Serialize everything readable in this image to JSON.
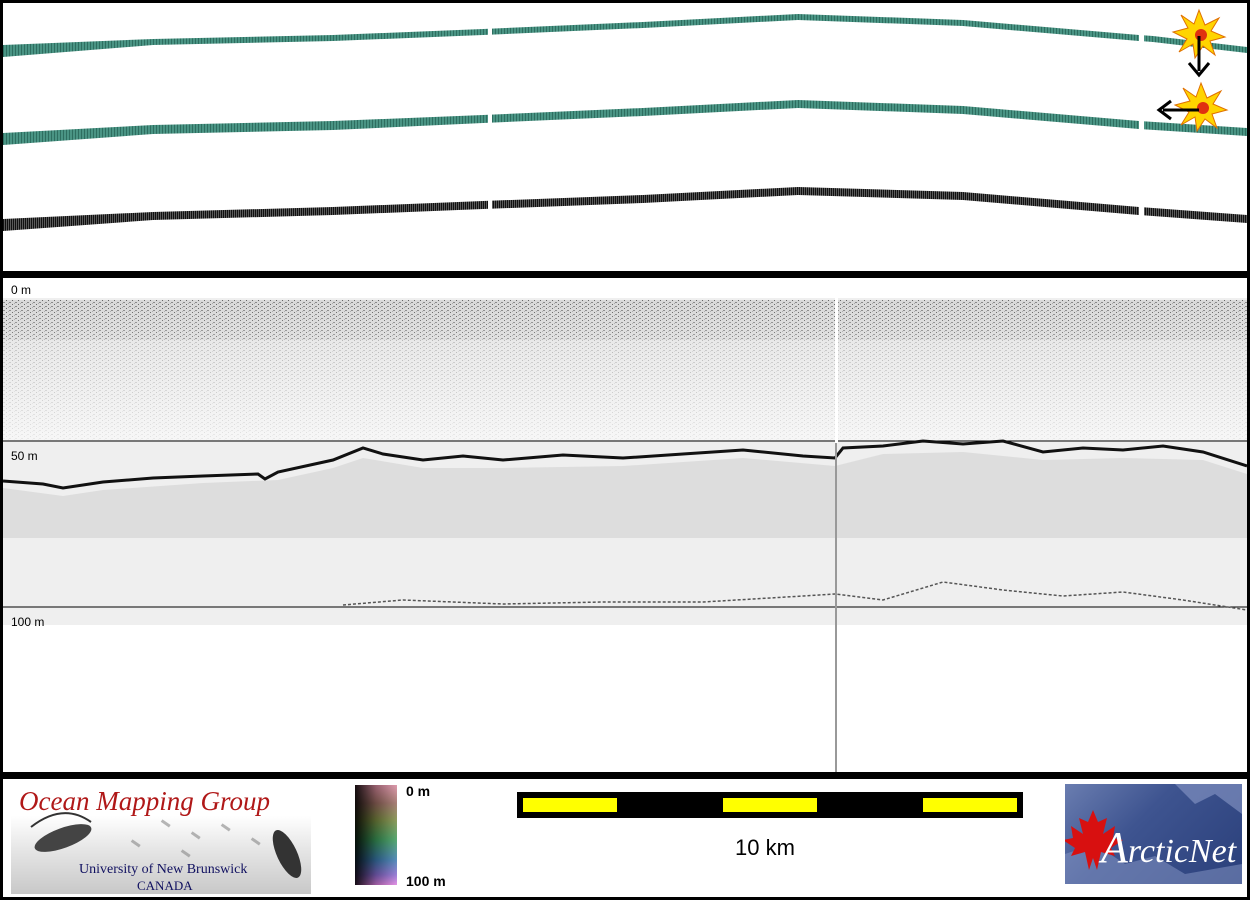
{
  "profile": {
    "depth_labels": [
      "0 m",
      "50 m",
      "100 m"
    ]
  },
  "legend": {
    "colorbar_top": "0 m",
    "colorbar_bottom": "100 m",
    "scale_label": "10 km"
  },
  "logos": {
    "omg_title": "Ocean Mapping Group",
    "omg_subtitle": "University of New Brunswick",
    "omg_country": "CANADA",
    "arcticnet_initial": "A",
    "arcticnet_rest": "rcticNet"
  },
  "colors": {
    "swath": "#3f8a78",
    "backscatter": "#2a2a2a",
    "scale_fill": "#ffff00",
    "omg_red": "#b01818",
    "maple_red": "#d81010"
  },
  "icons": [
    "sun-icon",
    "arrow-down-icon",
    "arrow-left-icon",
    "maple-leaf-icon",
    "sonar-fish-icon"
  ]
}
